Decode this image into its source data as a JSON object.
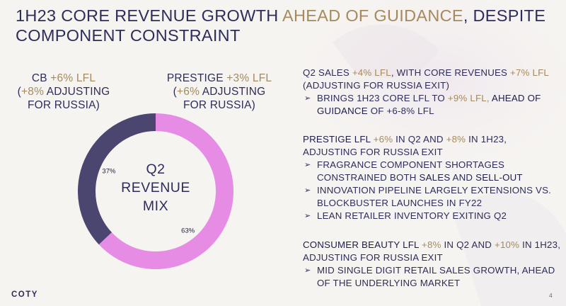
{
  "title": {
    "part1": "1H23 CORE REVENUE GROWTH ",
    "highlight": "AHEAD OF GUIDANCE",
    "part2": ", DESPITE COMPONENT CONSTRAINT"
  },
  "chart_data": {
    "type": "pie",
    "title": "Q2 REVENUE MIX",
    "categories": [
      "CB",
      "PRESTIGE"
    ],
    "values": [
      37,
      63
    ],
    "value_labels": [
      "37%",
      "63%"
    ],
    "colors": [
      "#4a4670",
      "#e68ce4"
    ],
    "center_lines": [
      "Q2",
      "REVENUE",
      "MIX"
    ]
  },
  "segment_labels": {
    "cb": {
      "name": "CB ",
      "lfl": "+6% LFL",
      "line2_open": "(",
      "adj": "+8%",
      "line2_rest": " ADJUSTING",
      "line3": "FOR RUSSIA)"
    },
    "prestige": {
      "name": "PRESTIGE ",
      "lfl": "+3% LFL",
      "line2_open": "(",
      "adj": "+6%",
      "line2_rest": " ADJUSTING",
      "line3": "FOR RUSSIA)"
    }
  },
  "blocks": [
    {
      "headline": [
        {
          "t": "Q2 ",
          "c": "n"
        },
        {
          "t": "SALES ",
          "c": "n"
        },
        {
          "t": "+4% LFL",
          "c": "g"
        },
        {
          "t": ", WITH CORE REVENUES ",
          "c": "n"
        },
        {
          "t": "+7% LFL",
          "c": "g"
        },
        {
          "t": " (ADJUSTING FOR RUSSIA EXIT)",
          "c": "n"
        }
      ],
      "subs": [
        [
          {
            "t": "BRINGS 1H23 CORE LFL TO ",
            "c": "n"
          },
          {
            "t": "+9% LFL,",
            "c": "g"
          },
          {
            "t": " AHEAD OF GUIDANCE",
            "c": "b"
          },
          {
            "t": " OF +6-8% LFL",
            "c": "n"
          }
        ]
      ]
    },
    {
      "headline": [
        {
          "t": "PRESTIGE LFL ",
          "c": "b"
        },
        {
          "t": "+6%",
          "c": "g"
        },
        {
          "t": " IN Q2 AND ",
          "c": "n"
        },
        {
          "t": "+8%",
          "c": "g"
        },
        {
          "t": " IN 1H23,",
          "c": "n"
        },
        {
          "t": " ADJUSTING FOR RUSSIA EXIT",
          "c": "n"
        }
      ],
      "subs": [
        [
          {
            "t": "FRAGRANCE COMPONENT SHORTAGES CONSTRAINED BOTH ",
            "c": "n"
          },
          {
            "t": "SALES",
            "c": "b"
          },
          {
            "t": " AND ",
            "c": "n"
          },
          {
            "t": "SELL-OUT",
            "c": "b"
          }
        ],
        [
          {
            "t": "INNOVATION PIPELINE LARGELY EXTENSIONS VS. BLOCKBUSTER LAUNCHES IN FY22",
            "c": "n"
          }
        ],
        [
          {
            "t": "LEAN RETAILER INVENTORY EXITING Q2",
            "c": "n"
          }
        ]
      ]
    },
    {
      "headline": [
        {
          "t": "CONSUMER BEAUTY LFL ",
          "c": "b"
        },
        {
          "t": "+8%",
          "c": "g"
        },
        {
          "t": " IN Q2 AND ",
          "c": "n"
        },
        {
          "t": "+10%",
          "c": "g"
        },
        {
          "t": " IN 1H23,",
          "c": "n"
        },
        {
          "t": " ADJUSTING FOR RUSSIA EXIT",
          "c": "n"
        }
      ],
      "subs": [
        [
          {
            "t": "MID SINGLE DIGIT RETAIL SALES GROWTH, AHEAD OF THE UNDERLYING MARKET",
            "c": "n"
          }
        ]
      ]
    }
  ],
  "footer": {
    "logo": "COTY",
    "page": "4"
  },
  "colors": {
    "gold": "#a58a5e",
    "navy": "#2f2d5a",
    "purple_segment": "#4a4670",
    "pink_segment": "#e68ce4"
  }
}
